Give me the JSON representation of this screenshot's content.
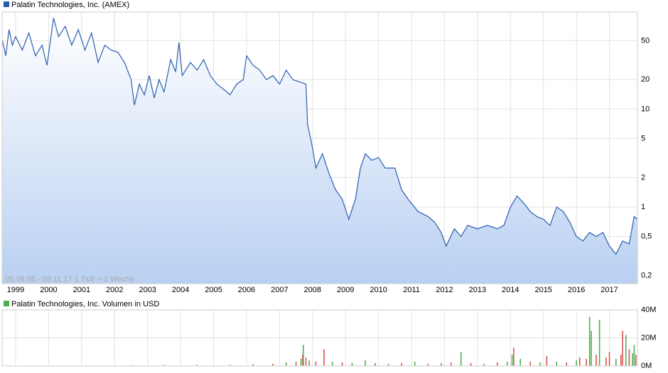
{
  "chart_data": [
    {
      "type": "area",
      "annotation": "05.08.98 - 08.11.17   1 Tick = 1 Woche",
      "log_scale": true,
      "grid": true,
      "xlim": [
        1998.59,
        2017.85
      ],
      "xticks": [
        1999,
        2000,
        2001,
        2002,
        2003,
        2004,
        2005,
        2006,
        2007,
        2008,
        2009,
        2010,
        2011,
        2012,
        2013,
        2014,
        2015,
        2016,
        2017
      ],
      "ylim": [
        0.165,
        98
      ],
      "yticks": [
        {
          "value": 0.2,
          "label": "0,2"
        },
        {
          "value": 0.5,
          "label": "0,5"
        },
        1,
        2,
        5,
        10,
        20,
        50
      ],
      "series": [
        {
          "name": "Palatin Technologies, Inc. (AMEX)",
          "color": "#2a5db0",
          "x": [
            1998.6,
            1998.7,
            1998.8,
            1998.9,
            1999.0,
            1999.2,
            1999.4,
            1999.6,
            1999.8,
            1999.95,
            2000.15,
            2000.3,
            2000.5,
            2000.7,
            2000.9,
            2001.1,
            2001.3,
            2001.5,
            2001.7,
            2001.9,
            2002.1,
            2002.3,
            2002.5,
            2002.6,
            2002.75,
            2002.9,
            2003.05,
            2003.2,
            2003.35,
            2003.5,
            2003.7,
            2003.85,
            2003.95,
            2004.05,
            2004.3,
            2004.5,
            2004.7,
            2004.9,
            2005.1,
            2005.3,
            2005.5,
            2005.7,
            2005.9,
            2006.0,
            2006.2,
            2006.4,
            2006.6,
            2006.8,
            2007.0,
            2007.2,
            2007.4,
            2007.6,
            2007.8,
            2007.85,
            2008.0,
            2008.1,
            2008.3,
            2008.5,
            2008.7,
            2008.9,
            2009.1,
            2009.3,
            2009.45,
            2009.6,
            2009.8,
            2010.0,
            2010.2,
            2010.5,
            2010.7,
            2010.9,
            2011.2,
            2011.5,
            2011.7,
            2011.9,
            2012.05,
            2012.3,
            2012.5,
            2012.7,
            2013.0,
            2013.3,
            2013.6,
            2013.8,
            2014.0,
            2014.2,
            2014.4,
            2014.6,
            2014.8,
            2015.0,
            2015.2,
            2015.4,
            2015.6,
            2015.8,
            2016.0,
            2016.2,
            2016.4,
            2016.6,
            2016.8,
            2017.0,
            2017.2,
            2017.4,
            2017.6,
            2017.75,
            2017.85
          ],
          "values": [
            50,
            35,
            65,
            45,
            55,
            40,
            60,
            35,
            45,
            28,
            85,
            55,
            70,
            45,
            65,
            40,
            60,
            30,
            45,
            40,
            38,
            30,
            20,
            11,
            18,
            14,
            22,
            13,
            20,
            15,
            32,
            24,
            48,
            22,
            30,
            25,
            32,
            22,
            18,
            16,
            14,
            18,
            20,
            35,
            28,
            25,
            20,
            22,
            18,
            25,
            20,
            19,
            18,
            7,
            4,
            2.5,
            3.5,
            2.2,
            1.5,
            1.2,
            0.75,
            1.2,
            2.5,
            3.5,
            3.0,
            3.2,
            2.5,
            2.5,
            1.5,
            1.2,
            0.9,
            0.8,
            0.7,
            0.55,
            0.4,
            0.6,
            0.5,
            0.65,
            0.6,
            0.65,
            0.6,
            0.65,
            1.0,
            1.3,
            1.1,
            0.9,
            0.8,
            0.75,
            0.65,
            1.0,
            0.9,
            0.7,
            0.5,
            0.45,
            0.55,
            0.5,
            0.55,
            0.4,
            0.33,
            0.45,
            0.42,
            0.8,
            0.75
          ]
        }
      ]
    },
    {
      "type": "bar",
      "grid": true,
      "xlim": [
        1998.59,
        2017.85
      ],
      "xticks": [
        1999,
        2000,
        2001,
        2002,
        2003,
        2004,
        2005,
        2006,
        2007,
        2008,
        2009,
        2010,
        2011,
        2012,
        2013,
        2014,
        2015,
        2016,
        2017
      ],
      "ylim": [
        0,
        40000000
      ],
      "yticks": [
        {
          "value": 0,
          "label": "0M"
        },
        {
          "value": 20000000,
          "label": "20M"
        },
        {
          "value": 40000000,
          "label": "40M"
        }
      ],
      "series": [
        {
          "name": "Palatin Technologies, Inc. Volumen in USD",
          "color": "#4caf50",
          "x": [
            2002.5,
            2003.5,
            2004.5,
            2005.5,
            2006.2,
            2006.8,
            2007.2,
            2007.5,
            2007.65,
            2007.7,
            2007.72,
            2007.8,
            2007.9,
            2008.1,
            2008.35,
            2008.6,
            2008.9,
            2009.2,
            2009.6,
            2009.9,
            2010.3,
            2010.7,
            2011.1,
            2011.5,
            2011.9,
            2012.2,
            2012.5,
            2012.8,
            2013.2,
            2013.6,
            2013.9,
            2014.05,
            2014.1,
            2014.3,
            2014.6,
            2014.9,
            2015.1,
            2015.4,
            2015.7,
            2016.0,
            2016.1,
            2016.3,
            2016.4,
            2016.45,
            2016.6,
            2016.7,
            2016.9,
            2017.0,
            2017.2,
            2017.35,
            2017.4,
            2017.5,
            2017.6,
            2017.7,
            2017.75,
            2017.8
          ],
          "values": [
            500000,
            600000,
            800000,
            700000,
            1200000,
            1500000,
            2500000,
            3000000,
            5000000,
            8000000,
            15000000,
            6000000,
            4000000,
            3000000,
            12000000,
            3000000,
            2500000,
            2000000,
            4000000,
            2000000,
            1500000,
            2000000,
            3000000,
            1500000,
            2000000,
            2500000,
            10000000,
            2000000,
            1500000,
            2500000,
            3000000,
            8000000,
            13000000,
            5000000,
            3000000,
            2500000,
            7000000,
            3000000,
            2500000,
            4000000,
            6000000,
            5000000,
            35000000,
            25000000,
            8000000,
            33000000,
            6000000,
            10000000,
            5000000,
            8000000,
            25000000,
            22000000,
            12000000,
            9000000,
            15000000,
            8000000
          ],
          "colors": [
            "#4caf50",
            "#d9534f",
            "#4caf50",
            "#d9534f",
            "#4caf50",
            "#d9534f",
            "#4caf50",
            "#d9534f",
            "#4caf50",
            "#d9534f",
            "#4caf50",
            "#d9534f",
            "#4caf50",
            "#d9534f",
            "#d9534f",
            "#4caf50",
            "#d9534f",
            "#4caf50",
            "#4caf50",
            "#d9534f",
            "#4caf50",
            "#d9534f",
            "#4caf50",
            "#d9534f",
            "#4caf50",
            "#d9534f",
            "#4caf50",
            "#d9534f",
            "#4caf50",
            "#d9534f",
            "#4caf50",
            "#4caf50",
            "#d9534f",
            "#4caf50",
            "#d9534f",
            "#4caf50",
            "#d9534f",
            "#4caf50",
            "#d9534f",
            "#4caf50",
            "#d9534f",
            "#d9534f",
            "#4caf50",
            "#4caf50",
            "#d9534f",
            "#4caf50",
            "#d9534f",
            "#d9534f",
            "#4caf50",
            "#d9534f",
            "#d9534f",
            "#4caf50",
            "#d9534f",
            "#4caf50",
            "#4caf50",
            "#d9534f"
          ]
        }
      ]
    }
  ]
}
